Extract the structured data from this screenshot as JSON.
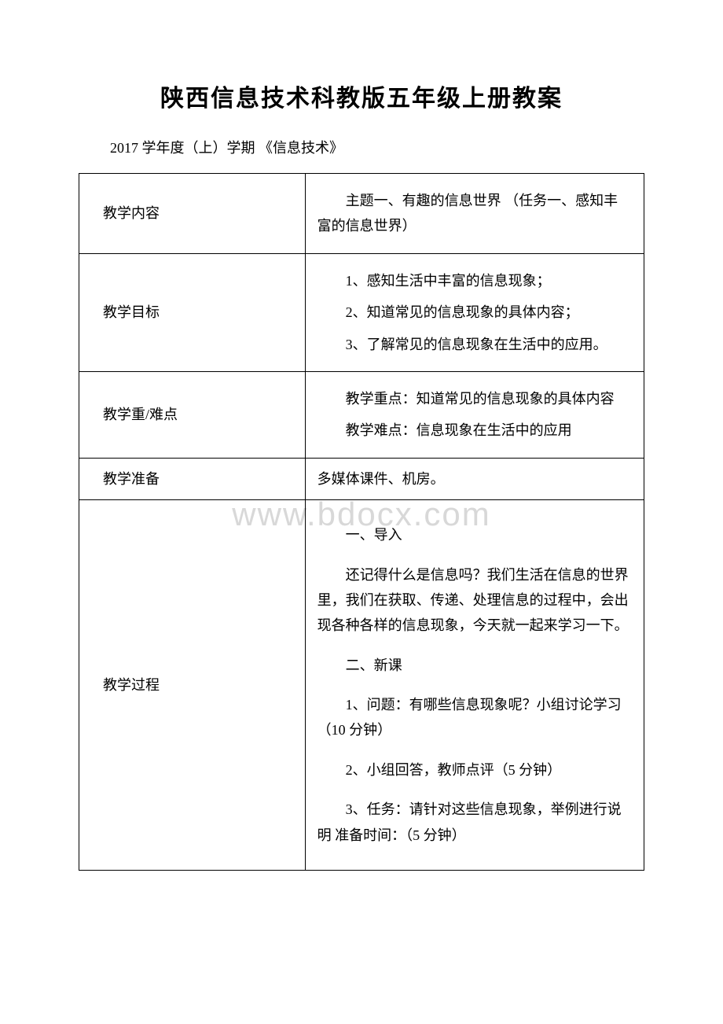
{
  "title": "陕西信息技术科教版五年级上册教案",
  "subtitle": "2017 学年度（上）学期 《信息技术》",
  "watermark": "www.bdocx.com",
  "rows": {
    "r1": {
      "label": "教学内容",
      "content": "主题一、有趣的信息世界 （任务一、感知丰富的信息世界）"
    },
    "r2": {
      "label": "教学目标",
      "p1": "1、感知生活中丰富的信息现象；",
      "p2": "2、知道常见的信息现象的具体内容；",
      "p3": "3、了解常见的信息现象在生活中的应用。"
    },
    "r3": {
      "label": "教学重/难点",
      "p1": "教学重点：知道常见的信息现象的具体内容",
      "p2": "教学难点：信息现象在生活中的应用"
    },
    "r4": {
      "label": "教学准备",
      "content": "多媒体课件、机房。"
    },
    "r5": {
      "label": "教学过程",
      "p1": "一、导入",
      "p2": "还记得什么是信息吗？我们生活在信息的世界里，我们在获取、传递、处理信息的过程中，会出现各种各样的信息现象，今天就一起来学习一下。",
      "p3": "二、新课",
      "p4": "1、问题：有哪些信息现象呢？小组讨论学习（10 分钟）",
      "p5": "2、小组回答，教师点评（5 分钟）",
      "p6": "3、任务：请针对这些信息现象，举例进行说明 准备时间：（5 分钟）"
    }
  },
  "colors": {
    "text": "#000000",
    "background": "#ffffff",
    "border": "#000000",
    "watermark": "#d8d8d8"
  }
}
